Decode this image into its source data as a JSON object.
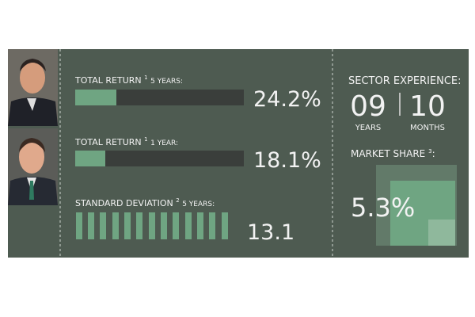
{
  "metrics": [
    {
      "title": "TOTAL RETURN",
      "note": "1",
      "period": "5 YEARS:",
      "value": "24.2%"
    },
    {
      "title": "TOTAL RETURN",
      "note": "1",
      "period": "1 YEAR:",
      "value": "18.1%"
    },
    {
      "title": "STANDARD DEVIATION",
      "note": "2",
      "period": "5 YEARS:",
      "value": "13.1"
    }
  ],
  "sector_experience": {
    "title": "SECTOR EXPERIENCE:",
    "years": "09",
    "years_label": "YEARS",
    "months": "10",
    "months_label": "MONTHS"
  },
  "market_share": {
    "title": "MARKET SHARE",
    "note": "3",
    "value": "5.3%"
  }
}
